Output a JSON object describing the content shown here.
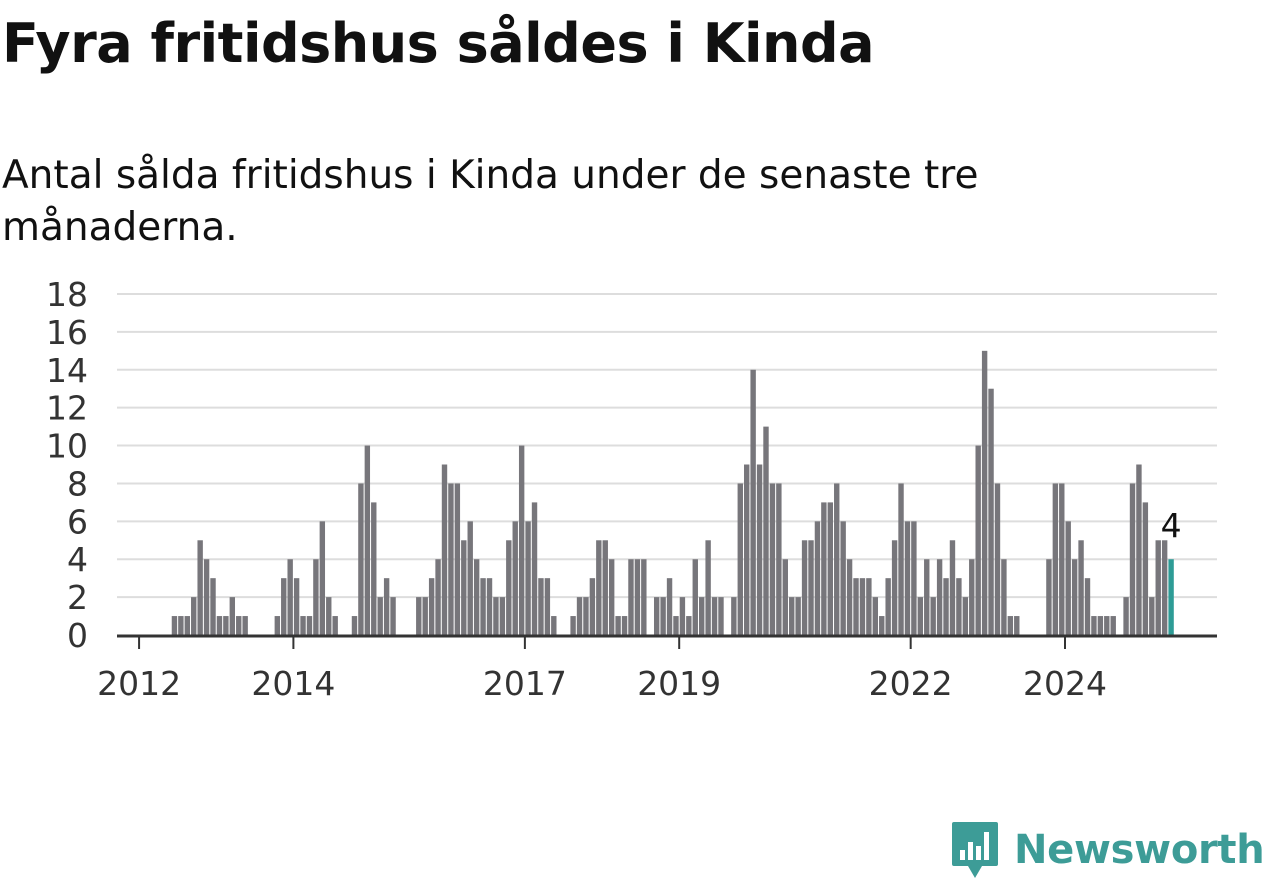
{
  "title": "Fyra fritidshus såldes i Kinda",
  "subtitle": "Antal sålda fritidshus i Kinda under de senaste tre månaderna.",
  "brand": {
    "name": "Newsworthy",
    "icon": "newsworthy-logo-icon",
    "color": "#3d9c97"
  },
  "chart_data": {
    "type": "bar",
    "ylim": [
      0,
      18
    ],
    "yticks": [
      0,
      2,
      4,
      6,
      8,
      10,
      12,
      14,
      16,
      18
    ],
    "xtick_labels": [
      {
        "label": "2012",
        "index": 2.5
      },
      {
        "label": "2014",
        "index": 26.5
      },
      {
        "label": "2017",
        "index": 62.5
      },
      {
        "label": "2019",
        "index": 86.5
      },
      {
        "label": "2022",
        "index": 122.5
      },
      {
        "label": "2024",
        "index": 146.5
      }
    ],
    "values": [
      0,
      0,
      0,
      0,
      0,
      0,
      0,
      0,
      1,
      1,
      1,
      2,
      5,
      4,
      3,
      1,
      1,
      2,
      1,
      1,
      0,
      0,
      0,
      0,
      1,
      3,
      4,
      3,
      1,
      1,
      4,
      6,
      2,
      1,
      0,
      0,
      1,
      8,
      10,
      7,
      2,
      3,
      2,
      0,
      0,
      0,
      2,
      2,
      3,
      4,
      9,
      8,
      8,
      5,
      6,
      4,
      3,
      3,
      2,
      2,
      5,
      6,
      10,
      6,
      7,
      3,
      3,
      1,
      0,
      0,
      1,
      2,
      2,
      3,
      5,
      5,
      4,
      1,
      1,
      4,
      4,
      4,
      0,
      2,
      2,
      3,
      1,
      2,
      1,
      4,
      2,
      5,
      2,
      2,
      0,
      2,
      8,
      9,
      14,
      9,
      11,
      8,
      8,
      4,
      2,
      2,
      5,
      5,
      6,
      7,
      7,
      8,
      6,
      4,
      3,
      3,
      3,
      2,
      1,
      3,
      5,
      8,
      6,
      6,
      2,
      4,
      2,
      4,
      3,
      5,
      3,
      2,
      4,
      10,
      15,
      13,
      8,
      4,
      1,
      1,
      0,
      0,
      0,
      0,
      4,
      8,
      8,
      6,
      4,
      5,
      3,
      1,
      1,
      1,
      1,
      0,
      2,
      8,
      9,
      7,
      2,
      5,
      5,
      4
    ],
    "highlight_value_label": "4",
    "colors": {
      "bar": "#77767b",
      "highlight": "#2e9c96",
      "grid": "#dddddd",
      "axis": "#333333",
      "text": "#333333"
    }
  }
}
